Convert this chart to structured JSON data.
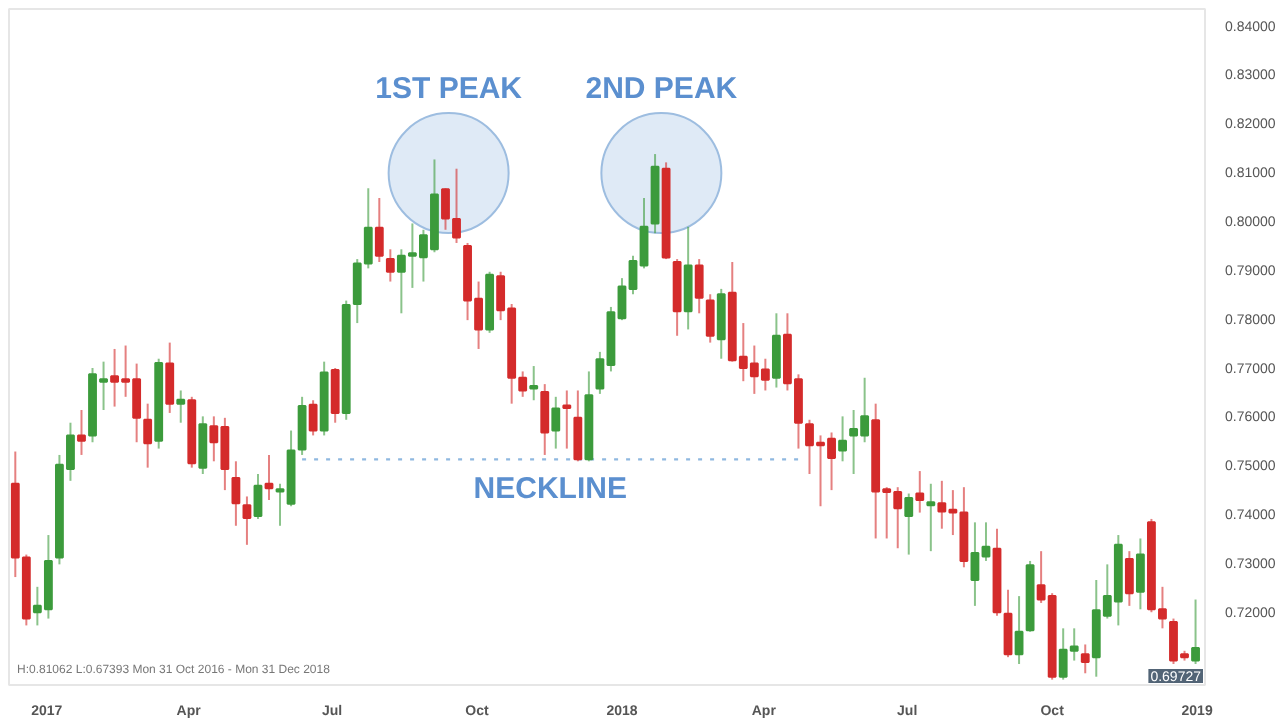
{
  "chart_data": {
    "type": "candlestick",
    "x": [
      "2016-12-12",
      "2016-12-19",
      "2016-12-26",
      "2017-01-02",
      "2017-01-09",
      "2017-01-16",
      "2017-01-23",
      "2017-01-30",
      "2017-02-06",
      "2017-02-13",
      "2017-02-20",
      "2017-02-27",
      "2017-03-06",
      "2017-03-13",
      "2017-03-20",
      "2017-03-27",
      "2017-04-03",
      "2017-04-10",
      "2017-04-17",
      "2017-04-24",
      "2017-05-01",
      "2017-05-08",
      "2017-05-15",
      "2017-05-22",
      "2017-05-29",
      "2017-06-05",
      "2017-06-12",
      "2017-06-19",
      "2017-06-26",
      "2017-07-03",
      "2017-07-10",
      "2017-07-17",
      "2017-07-24",
      "2017-07-31",
      "2017-08-07",
      "2017-08-14",
      "2017-08-21",
      "2017-08-28",
      "2017-09-04",
      "2017-09-11",
      "2017-09-18",
      "2017-09-25",
      "2017-10-02",
      "2017-10-09",
      "2017-10-16",
      "2017-10-23",
      "2017-10-30",
      "2017-11-06",
      "2017-11-13",
      "2017-11-20",
      "2017-11-27",
      "2017-12-04",
      "2017-12-11",
      "2017-12-18",
      "2017-12-25",
      "2018-01-01",
      "2018-01-08",
      "2018-01-15",
      "2018-01-22",
      "2018-01-29",
      "2018-02-05",
      "2018-02-12",
      "2018-02-19",
      "2018-02-26",
      "2018-03-05",
      "2018-03-12",
      "2018-03-19",
      "2018-03-26",
      "2018-04-02",
      "2018-04-09",
      "2018-04-16",
      "2018-04-23",
      "2018-04-30",
      "2018-05-07",
      "2018-05-14",
      "2018-05-21",
      "2018-05-28",
      "2018-06-04",
      "2018-06-11",
      "2018-06-18",
      "2018-06-25",
      "2018-07-02",
      "2018-07-09",
      "2018-07-16",
      "2018-07-23",
      "2018-07-30",
      "2018-08-06",
      "2018-08-13",
      "2018-08-20",
      "2018-08-27",
      "2018-09-03",
      "2018-09-10",
      "2018-09-17",
      "2018-09-24",
      "2018-10-01",
      "2018-10-08",
      "2018-10-15",
      "2018-10-22",
      "2018-10-29",
      "2018-11-05",
      "2018-11-12",
      "2018-11-19",
      "2018-11-26",
      "2018-12-03",
      "2018-12-10",
      "2018-12-17",
      "2018-12-24",
      "2018-12-31"
    ],
    "ohlc": [
      [
        0.7462,
        0.7528,
        0.7271,
        0.7311
      ],
      [
        0.7311,
        0.7317,
        0.7172,
        0.7186
      ],
      [
        0.7199,
        0.7251,
        0.7172,
        0.7212
      ],
      [
        0.7205,
        0.7357,
        0.7186,
        0.7304
      ],
      [
        0.7311,
        0.7521,
        0.7297,
        0.7501
      ],
      [
        0.7492,
        0.7587,
        0.7468,
        0.7561
      ],
      [
        0.7561,
        0.7613,
        0.7521,
        0.755
      ],
      [
        0.7561,
        0.7699,
        0.7547,
        0.7686
      ],
      [
        0.7671,
        0.7712,
        0.7613,
        0.7676
      ],
      [
        0.7682,
        0.7738,
        0.762,
        0.7671
      ],
      [
        0.7676,
        0.7745,
        0.764,
        0.7671
      ],
      [
        0.7676,
        0.7708,
        0.7547,
        0.7597
      ],
      [
        0.7593,
        0.7626,
        0.7495,
        0.7545
      ],
      [
        0.755,
        0.7718,
        0.7534,
        0.7709
      ],
      [
        0.7708,
        0.7751,
        0.7607,
        0.7626
      ],
      [
        0.7626,
        0.7653,
        0.7587,
        0.7634
      ],
      [
        0.7633,
        0.764,
        0.7495,
        0.7504
      ],
      [
        0.7495,
        0.76,
        0.7482,
        0.7584
      ],
      [
        0.758,
        0.76,
        0.7508,
        0.7547
      ],
      [
        0.7578,
        0.7597,
        0.7449,
        0.7492
      ],
      [
        0.7474,
        0.7508,
        0.7376,
        0.7422
      ],
      [
        0.7418,
        0.7436,
        0.7337,
        0.7392
      ],
      [
        0.7396,
        0.7482,
        0.739,
        0.7458
      ],
      [
        0.7462,
        0.7521,
        0.7429,
        0.7453
      ],
      [
        0.7446,
        0.7462,
        0.7376,
        0.7451
      ],
      [
        0.7421,
        0.7571,
        0.7416,
        0.753
      ],
      [
        0.7532,
        0.764,
        0.7521,
        0.7621
      ],
      [
        0.7624,
        0.7633,
        0.7561,
        0.7571
      ],
      [
        0.7571,
        0.7712,
        0.7561,
        0.769
      ],
      [
        0.7695,
        0.7699,
        0.7587,
        0.7607
      ],
      [
        0.7607,
        0.7837,
        0.7593,
        0.7828
      ],
      [
        0.783,
        0.7922,
        0.7791,
        0.7913
      ],
      [
        0.7913,
        0.8067,
        0.7903,
        0.7986
      ],
      [
        0.7986,
        0.8047,
        0.7916,
        0.7929
      ],
      [
        0.7922,
        0.7942,
        0.7876,
        0.7896
      ],
      [
        0.7896,
        0.7942,
        0.7811,
        0.7929
      ],
      [
        0.7929,
        0.7995,
        0.7863,
        0.7934
      ],
      [
        0.7926,
        0.7982,
        0.7876,
        0.7971
      ],
      [
        0.7942,
        0.8126,
        0.7936,
        0.8054
      ],
      [
        0.8065,
        0.8067,
        0.7982,
        0.8005
      ],
      [
        0.8004,
        0.8107,
        0.7955,
        0.7966
      ],
      [
        0.7949,
        0.7955,
        0.7797,
        0.7837
      ],
      [
        0.7841,
        0.7876,
        0.7738,
        0.7778
      ],
      [
        0.7778,
        0.7896,
        0.7771,
        0.789
      ],
      [
        0.7887,
        0.7896,
        0.7797,
        0.7817
      ],
      [
        0.7821,
        0.783,
        0.7626,
        0.7679
      ],
      [
        0.7679,
        0.7692,
        0.764,
        0.7653
      ],
      [
        0.7657,
        0.7703,
        0.7633,
        0.7662
      ],
      [
        0.765,
        0.7666,
        0.7521,
        0.7567
      ],
      [
        0.7571,
        0.764,
        0.7534,
        0.7616
      ],
      [
        0.7622,
        0.7653,
        0.7534,
        0.7617
      ],
      [
        0.7597,
        0.7653,
        0.7508,
        0.7512
      ],
      [
        0.7512,
        0.7692,
        0.7508,
        0.7643
      ],
      [
        0.7657,
        0.7732,
        0.7646,
        0.7717
      ],
      [
        0.7705,
        0.7824,
        0.7692,
        0.7813
      ],
      [
        0.7801,
        0.7883,
        0.7797,
        0.7866
      ],
      [
        0.7861,
        0.7929,
        0.785,
        0.7918
      ],
      [
        0.7909,
        0.8047,
        0.7903,
        0.7988
      ],
      [
        0.7995,
        0.8137,
        0.7975,
        0.8111
      ],
      [
        0.8107,
        0.812,
        0.7922,
        0.7925
      ],
      [
        0.7916,
        0.7922,
        0.7765,
        0.7815
      ],
      [
        0.7815,
        0.7988,
        0.7778,
        0.7909
      ],
      [
        0.7909,
        0.7922,
        0.7811,
        0.7843
      ],
      [
        0.7837,
        0.785,
        0.7751,
        0.7765
      ],
      [
        0.7758,
        0.7861,
        0.7718,
        0.785
      ],
      [
        0.7853,
        0.7916,
        0.7712,
        0.7715
      ],
      [
        0.7722,
        0.7791,
        0.7672,
        0.7699
      ],
      [
        0.7708,
        0.7745,
        0.7646,
        0.7682
      ],
      [
        0.7696,
        0.7718,
        0.7653,
        0.7675
      ],
      [
        0.7679,
        0.7811,
        0.7659,
        0.7765
      ],
      [
        0.7767,
        0.7811,
        0.7653,
        0.7668
      ],
      [
        0.7676,
        0.7686,
        0.7534,
        0.7587
      ],
      [
        0.7584,
        0.7593,
        0.7482,
        0.7541
      ],
      [
        0.7546,
        0.7561,
        0.7416,
        0.7541
      ],
      [
        0.7554,
        0.7567,
        0.7449,
        0.7515
      ],
      [
        0.753,
        0.76,
        0.7508,
        0.755
      ],
      [
        0.7561,
        0.7613,
        0.7482,
        0.7574
      ],
      [
        0.7561,
        0.7679,
        0.7547,
        0.76
      ],
      [
        0.7592,
        0.7626,
        0.735,
        0.7446
      ],
      [
        0.7451,
        0.7455,
        0.735,
        0.7445
      ],
      [
        0.7445,
        0.7455,
        0.733,
        0.7412
      ],
      [
        0.7396,
        0.7442,
        0.7317,
        0.7433
      ],
      [
        0.7442,
        0.7488,
        0.7403,
        0.7429
      ],
      [
        0.7418,
        0.7462,
        0.7324,
        0.7424
      ],
      [
        0.7422,
        0.7468,
        0.737,
        0.7405
      ],
      [
        0.7409,
        0.7449,
        0.7357,
        0.7403
      ],
      [
        0.7403,
        0.7455,
        0.7291,
        0.7304
      ],
      [
        0.7265,
        0.7383,
        0.7212,
        0.732
      ],
      [
        0.7313,
        0.7383,
        0.7304,
        0.7333
      ],
      [
        0.7329,
        0.737,
        0.7192,
        0.7199
      ],
      [
        0.7196,
        0.7245,
        0.7107,
        0.7113
      ],
      [
        0.7113,
        0.7232,
        0.7093,
        0.7159
      ],
      [
        0.7162,
        0.7304,
        0.7159,
        0.7295
      ],
      [
        0.7254,
        0.7324,
        0.7218,
        0.7225
      ],
      [
        0.7232,
        0.7238,
        0.7061,
        0.7067
      ],
      [
        0.7067,
        0.7166,
        0.7061,
        0.7122
      ],
      [
        0.712,
        0.7166,
        0.71,
        0.7129
      ],
      [
        0.7113,
        0.7133,
        0.7074,
        0.7097
      ],
      [
        0.7107,
        0.7265,
        0.7067,
        0.7203
      ],
      [
        0.7192,
        0.7297,
        0.7186,
        0.7232
      ],
      [
        0.7221,
        0.7357,
        0.7172,
        0.7337
      ],
      [
        0.7308,
        0.7324,
        0.7212,
        0.7238
      ],
      [
        0.7241,
        0.735,
        0.7205,
        0.7317
      ],
      [
        0.7383,
        0.739,
        0.7199,
        0.7205
      ],
      [
        0.7205,
        0.7251,
        0.7166,
        0.7186
      ],
      [
        0.7179,
        0.7186,
        0.7093,
        0.71
      ],
      [
        0.7113,
        0.712,
        0.71,
        0.7107
      ],
      [
        0.71,
        0.7225,
        0.7093,
        0.7126
      ]
    ],
    "colors": [
      "#d42b2b",
      "#d42b2b",
      "#3c9b3c",
      "#3c9b3c",
      "#3c9b3c",
      "#3c9b3c",
      "#d42b2b",
      "#3c9b3c",
      "#3c9b3c",
      "#d42b2b",
      "#d42b2b",
      "#d42b2b",
      "#d42b2b",
      "#3c9b3c",
      "#d42b2b",
      "#3c9b3c",
      "#d42b2b",
      "#3c9b3c",
      "#d42b2b",
      "#d42b2b",
      "#d42b2b",
      "#d42b2b",
      "#3c9b3c",
      "#d42b2b",
      "#3c9b3c",
      "#3c9b3c",
      "#3c9b3c",
      "#d42b2b",
      "#3c9b3c",
      "#d42b2b",
      "#3c9b3c",
      "#3c9b3c",
      "#3c9b3c",
      "#d42b2b",
      "#d42b2b",
      "#3c9b3c",
      "#3c9b3c",
      "#3c9b3c",
      "#3c9b3c",
      "#d42b2b",
      "#d42b2b",
      "#d42b2b",
      "#d42b2b",
      "#3c9b3c",
      "#d42b2b",
      "#d42b2b",
      "#d42b2b",
      "#3c9b3c",
      "#d42b2b",
      "#3c9b3c",
      "#d42b2b",
      "#d42b2b",
      "#3c9b3c",
      "#3c9b3c",
      "#3c9b3c",
      "#3c9b3c",
      "#3c9b3c",
      "#3c9b3c",
      "#3c9b3c",
      "#d42b2b",
      "#d42b2b",
      "#3c9b3c",
      "#d42b2b",
      "#d42b2b",
      "#3c9b3c",
      "#d42b2b",
      "#d42b2b",
      "#d42b2b",
      "#d42b2b",
      "#3c9b3c",
      "#d42b2b",
      "#d42b2b",
      "#d42b2b",
      "#d42b2b",
      "#d42b2b",
      "#3c9b3c",
      "#3c9b3c",
      "#3c9b3c",
      "#d42b2b",
      "#d42b2b",
      "#d42b2b",
      "#3c9b3c",
      "#d42b2b",
      "#3c9b3c",
      "#d42b2b",
      "#d42b2b",
      "#d42b2b",
      "#3c9b3c",
      "#3c9b3c",
      "#d42b2b",
      "#d42b2b",
      "#3c9b3c",
      "#3c9b3c",
      "#d42b2b",
      "#d42b2b",
      "#3c9b3c",
      "#3c9b3c",
      "#d42b2b",
      "#3c9b3c",
      "#3c9b3c",
      "#3c9b3c",
      "#d42b2b",
      "#3c9b3c",
      "#d42b2b",
      "#d42b2b",
      "#d42b2b",
      "#d42b2b",
      "#3c9b3c"
    ],
    "series": [
      {
        "type": "line",
        "x": [
          "2017-06-12",
          "2018-04-23"
        ],
        "values": [
          0.7512,
          0.7512
        ],
        "color": "#8fb8e0",
        "line_style": "dotted"
      },
      {
        "type": "scatter",
        "x": [
          "2017-09-13",
          "2018-01-26"
        ],
        "values": [
          0.8098,
          0.8098
        ],
        "color": "#c5d9ee",
        "marker": "circle"
      }
    ],
    "annotations": [
      "1ST PEAK",
      "2ND PEAK",
      "NECKLINE",
      "H:0.81062  L:0.67393  Mon 31 Oct 2016 - Mon 31 Dec 2018",
      "0.69727"
    ],
    "xlim": [
      "2016-12-08",
      "2019-01-06"
    ],
    "xticks": [
      {
        "value": "2017-01-01",
        "label": "2017"
      },
      {
        "value": "2017-04-01",
        "label": "Apr"
      },
      {
        "value": "2017-07-01",
        "label": "Jul"
      },
      {
        "value": "2017-10-01",
        "label": "Oct"
      },
      {
        "value": "2018-01-01",
        "label": "2018"
      },
      {
        "value": "2018-04-01",
        "label": "Apr"
      },
      {
        "value": "2018-07-01",
        "label": "Jul"
      },
      {
        "value": "2018-10-01",
        "label": "Oct"
      },
      {
        "value": "2019-01-01",
        "label": "2019"
      }
    ],
    "ylim": [
      0.705,
      0.8434
    ],
    "yticks": [
      {
        "value": 0.72,
        "label": "0.72000"
      },
      {
        "value": 0.73,
        "label": "0.73000"
      },
      {
        "value": 0.74,
        "label": "0.74000"
      },
      {
        "value": 0.75,
        "label": "0.75000"
      },
      {
        "value": 0.76,
        "label": "0.76000"
      },
      {
        "value": 0.77,
        "label": "0.77000"
      },
      {
        "value": 0.78,
        "label": "0.78000"
      },
      {
        "value": 0.79,
        "label": "0.79000"
      },
      {
        "value": 0.8,
        "label": "0.80000"
      },
      {
        "value": 0.81,
        "label": "0.81000"
      },
      {
        "value": 0.82,
        "label": "0.82000"
      },
      {
        "value": 0.83,
        "label": "0.83000"
      },
      {
        "value": 0.84,
        "label": "0.84000"
      }
    ],
    "grid": false
  }
}
